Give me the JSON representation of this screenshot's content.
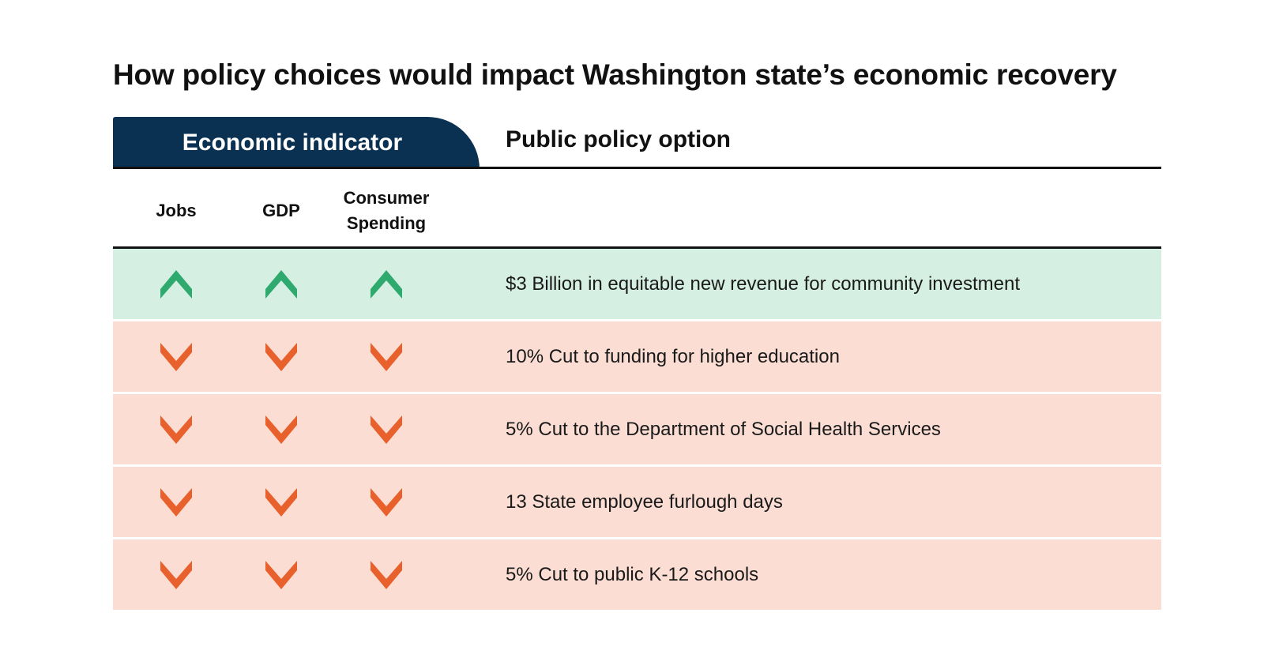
{
  "title": "How policy choices would impact Washington state’s economic recovery",
  "header": {
    "indicator_tab": "Economic indicator",
    "policy_heading": "Public policy option",
    "columns": [
      "Jobs",
      "GDP",
      "Consumer Spending"
    ]
  },
  "colors": {
    "up": "#2eaa6e",
    "down": "#e8602c",
    "up_row_bg": "#d5efe2",
    "down_row_bg": "#fbddd3",
    "tab_bg": "#0b3152"
  },
  "icons": {
    "up": "chevron-up-icon",
    "down": "chevron-down-icon"
  },
  "chart_data": {
    "type": "table",
    "title": "How policy choices would impact Washington state’s economic recovery",
    "columns": [
      "Economic indicator: Jobs",
      "Economic indicator: GDP",
      "Economic indicator: Consumer Spending",
      "Public policy option"
    ],
    "rows": [
      {
        "policy": "$3 Billion in equitable new revenue for community investment",
        "jobs": "up",
        "gdp": "up",
        "consumer_spending": "up"
      },
      {
        "policy": "10% Cut to funding for higher education",
        "jobs": "down",
        "gdp": "down",
        "consumer_spending": "down"
      },
      {
        "policy": "5% Cut to the Department of Social Health Services",
        "jobs": "down",
        "gdp": "down",
        "consumer_spending": "down"
      },
      {
        "policy": "13 State employee furlough days",
        "jobs": "down",
        "gdp": "down",
        "consumer_spending": "down"
      },
      {
        "policy": "5% Cut to public K-12 schools",
        "jobs": "down",
        "gdp": "down",
        "consumer_spending": "down"
      }
    ]
  }
}
